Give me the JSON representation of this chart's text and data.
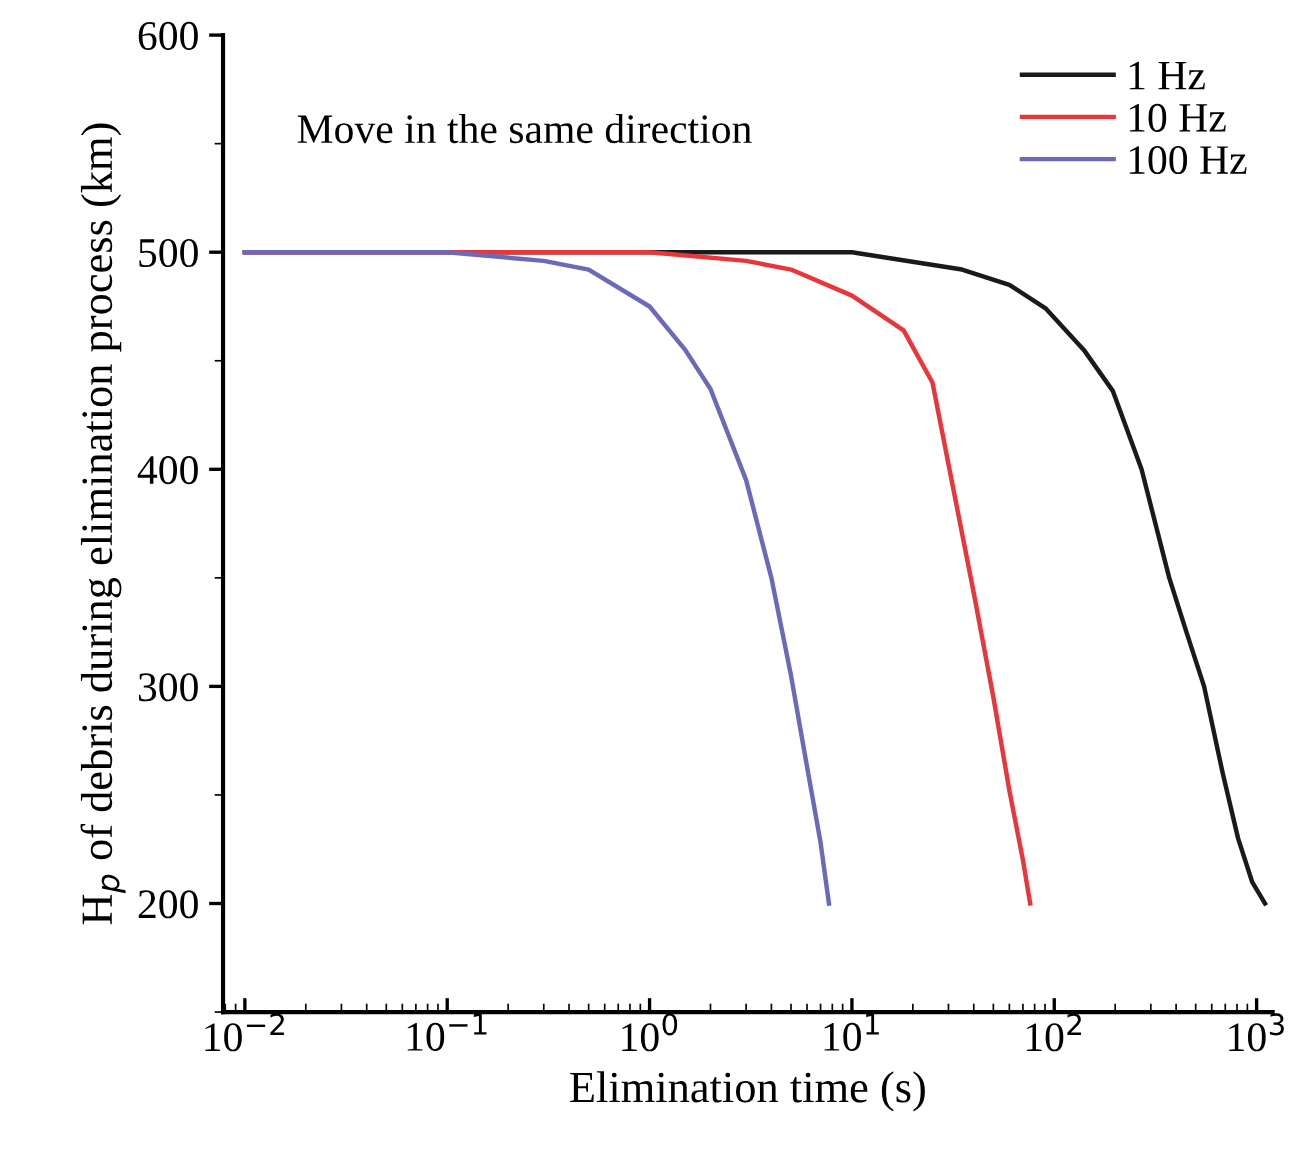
{
  "chart_data": {
    "type": "line",
    "xlabel": "Elimination time (s)",
    "ylabel": "H$_{p}$ of debris during elimination process (km)",
    "annotations": [
      "Move in the same direction"
    ],
    "log": "x",
    "xlim": [
      0.0078,
      1200
    ],
    "xticks": [
      {
        "value": 0.01,
        "label": "10$^{−2}$"
      },
      {
        "value": 0.1,
        "label": "10$^{−1}$"
      },
      {
        "value": 1,
        "label": "10$^{0}$"
      },
      {
        "value": 10,
        "label": "10$^{1}$"
      },
      {
        "value": 100,
        "label": "10$^{2}$"
      },
      {
        "value": 1000,
        "label": "10$^{3}$"
      }
    ],
    "ylim": [
      150,
      600
    ],
    "yticks": [
      200,
      300,
      400,
      500,
      600
    ],
    "grid": false,
    "legend": "top right",
    "marker": "none",
    "line_style": "solid",
    "series": [
      {
        "name": "1 Hz",
        "color": "#1a1a1a",
        "x": [
          0.01,
          10,
          35,
          60,
          91,
          140,
          195,
          270,
          370,
          450,
          550,
          680,
          810,
          950,
          1100
        ],
        "values": [
          500,
          500,
          492,
          485,
          474,
          455,
          436,
          400,
          350,
          325,
          300,
          260,
          230,
          210,
          200
        ]
      },
      {
        "name": "10 Hz",
        "color": "#e8363a",
        "x": [
          0.01,
          1,
          3,
          5,
          10,
          18,
          25,
          40,
          50,
          60,
          70,
          76
        ],
        "values": [
          500,
          500,
          496,
          492,
          480,
          464,
          440,
          343,
          295,
          252,
          220,
          200
        ]
      },
      {
        "name": "100 Hz",
        "color": "#6a6ab8",
        "x": [
          0.01,
          0.1,
          0.3,
          0.5,
          1,
          1.5,
          2,
          3,
          4,
          5,
          6,
          7,
          7.7
        ],
        "values": [
          500,
          500,
          496,
          492,
          475,
          455,
          437,
          395,
          350,
          305,
          263,
          228,
          200
        ]
      }
    ]
  }
}
